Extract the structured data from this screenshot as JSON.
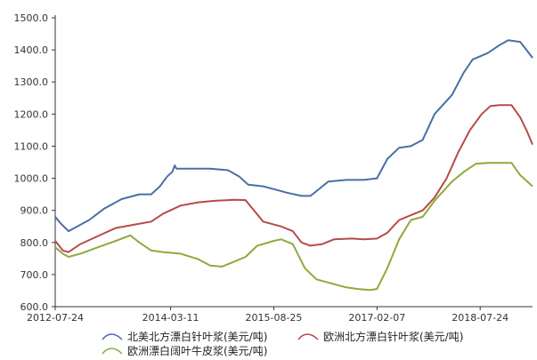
{
  "chart_data": {
    "type": "line",
    "title": "",
    "xlabel": "",
    "ylabel": "",
    "ylim": [
      600,
      1500
    ],
    "y_ticks": [
      "600.0",
      "700.0",
      "800.0",
      "900.0",
      "1000.0",
      "1100.0",
      "1200.0",
      "1300.0",
      "1400.0",
      "1500.0"
    ],
    "x_ticks": [
      "2012-07-24",
      "2014-03-11",
      "2015-08-25",
      "2017-02-07",
      "2018-07-24"
    ],
    "grid": false,
    "legend_position": "bottom",
    "series": [
      {
        "name": "北美北方漂白针叶浆(美元/吨)",
        "color": "#4a6fa5",
        "points": [
          [
            "2012-07-24",
            880
          ],
          [
            "2012-08-20",
            860
          ],
          [
            "2012-10-01",
            835
          ],
          [
            "2012-11-15",
            850
          ],
          [
            "2013-01-15",
            870
          ],
          [
            "2013-04-01",
            905
          ],
          [
            "2013-07-01",
            935
          ],
          [
            "2013-10-01",
            950
          ],
          [
            "2013-12-01",
            950
          ],
          [
            "2014-01-15",
            975
          ],
          [
            "2014-02-20",
            1005
          ],
          [
            "2014-03-20",
            1020
          ],
          [
            "2014-04-01",
            1040
          ],
          [
            "2014-04-10",
            1030
          ],
          [
            "2014-07-01",
            1030
          ],
          [
            "2014-10-01",
            1030
          ],
          [
            "2015-01-01",
            1025
          ],
          [
            "2015-03-01",
            1005
          ],
          [
            "2015-04-15",
            980
          ],
          [
            "2015-07-01",
            975
          ],
          [
            "2015-09-01",
            965
          ],
          [
            "2015-11-01",
            955
          ],
          [
            "2016-01-15",
            945
          ],
          [
            "2016-03-01",
            945
          ],
          [
            "2016-04-01",
            960
          ],
          [
            "2016-06-01",
            990
          ],
          [
            "2016-09-01",
            995
          ],
          [
            "2016-12-01",
            995
          ],
          [
            "2017-02-07",
            1000
          ],
          [
            "2017-04-01",
            1060
          ],
          [
            "2017-06-01",
            1095
          ],
          [
            "2017-08-01",
            1100
          ],
          [
            "2017-10-01",
            1120
          ],
          [
            "2017-12-01",
            1200
          ],
          [
            "2018-03-01",
            1260
          ],
          [
            "2018-05-01",
            1330
          ],
          [
            "2018-06-15",
            1370
          ],
          [
            "2018-09-01",
            1390
          ],
          [
            "2018-11-01",
            1415
          ],
          [
            "2018-12-15",
            1430
          ],
          [
            "2019-02-15",
            1425
          ],
          [
            "2019-03-20",
            1400
          ],
          [
            "2019-04-20",
            1375
          ]
        ]
      },
      {
        "name": "欧洲北方漂白针叶浆(美元/吨)",
        "color": "#b84a4a",
        "points": [
          [
            "2012-07-24",
            805
          ],
          [
            "2012-09-01",
            775
          ],
          [
            "2012-10-01",
            770
          ],
          [
            "2012-12-01",
            795
          ],
          [
            "2013-03-01",
            820
          ],
          [
            "2013-06-01",
            845
          ],
          [
            "2013-09-01",
            855
          ],
          [
            "2013-12-01",
            865
          ],
          [
            "2014-02-01",
            890
          ],
          [
            "2014-05-01",
            915
          ],
          [
            "2014-08-01",
            925
          ],
          [
            "2014-11-01",
            930
          ],
          [
            "2015-02-01",
            933
          ],
          [
            "2015-04-01",
            932
          ],
          [
            "2015-05-15",
            900
          ],
          [
            "2015-07-01",
            865
          ],
          [
            "2015-10-01",
            850
          ],
          [
            "2015-12-01",
            835
          ],
          [
            "2016-01-15",
            800
          ],
          [
            "2016-03-01",
            790
          ],
          [
            "2016-05-01",
            795
          ],
          [
            "2016-07-01",
            810
          ],
          [
            "2016-10-01",
            812
          ],
          [
            "2016-12-01",
            810
          ],
          [
            "2017-02-07",
            812
          ],
          [
            "2017-04-01",
            830
          ],
          [
            "2017-06-01",
            870
          ],
          [
            "2017-08-01",
            885
          ],
          [
            "2017-10-01",
            900
          ],
          [
            "2017-12-01",
            940
          ],
          [
            "2018-02-01",
            1000
          ],
          [
            "2018-04-01",
            1080
          ],
          [
            "2018-06-01",
            1150
          ],
          [
            "2018-08-01",
            1200
          ],
          [
            "2018-09-15",
            1225
          ],
          [
            "2018-11-01",
            1228
          ],
          [
            "2019-01-01",
            1228
          ],
          [
            "2019-02-15",
            1190
          ],
          [
            "2019-03-20",
            1150
          ],
          [
            "2019-04-20",
            1105
          ]
        ]
      },
      {
        "name": "欧洲漂白阔叶牛皮浆(美元/吨)",
        "color": "#8faa3c",
        "points": [
          [
            "2012-07-24",
            785
          ],
          [
            "2012-09-01",
            765
          ],
          [
            "2012-10-01",
            755
          ],
          [
            "2012-12-01",
            765
          ],
          [
            "2013-03-01",
            785
          ],
          [
            "2013-06-01",
            805
          ],
          [
            "2013-08-15",
            822
          ],
          [
            "2013-10-01",
            800
          ],
          [
            "2013-12-01",
            775
          ],
          [
            "2014-02-01",
            770
          ],
          [
            "2014-05-01",
            765
          ],
          [
            "2014-08-01",
            748
          ],
          [
            "2014-10-01",
            728
          ],
          [
            "2014-12-01",
            725
          ],
          [
            "2015-02-01",
            740
          ],
          [
            "2015-04-01",
            755
          ],
          [
            "2015-06-01",
            790
          ],
          [
            "2015-08-25",
            805
          ],
          [
            "2015-10-01",
            810
          ],
          [
            "2015-12-01",
            795
          ],
          [
            "2016-02-01",
            720
          ],
          [
            "2016-04-01",
            685
          ],
          [
            "2016-07-01",
            670
          ],
          [
            "2016-09-01",
            660
          ],
          [
            "2016-11-01",
            655
          ],
          [
            "2017-01-01",
            652
          ],
          [
            "2017-02-07",
            655
          ],
          [
            "2017-04-01",
            720
          ],
          [
            "2017-06-01",
            810
          ],
          [
            "2017-08-01",
            870
          ],
          [
            "2017-10-01",
            880
          ],
          [
            "2017-12-01",
            930
          ],
          [
            "2018-03-01",
            990
          ],
          [
            "2018-05-01",
            1020
          ],
          [
            "2018-07-01",
            1045
          ],
          [
            "2018-09-01",
            1048
          ],
          [
            "2019-01-01",
            1048
          ],
          [
            "2019-02-15",
            1010
          ],
          [
            "2019-04-20",
            975
          ]
        ]
      }
    ]
  }
}
